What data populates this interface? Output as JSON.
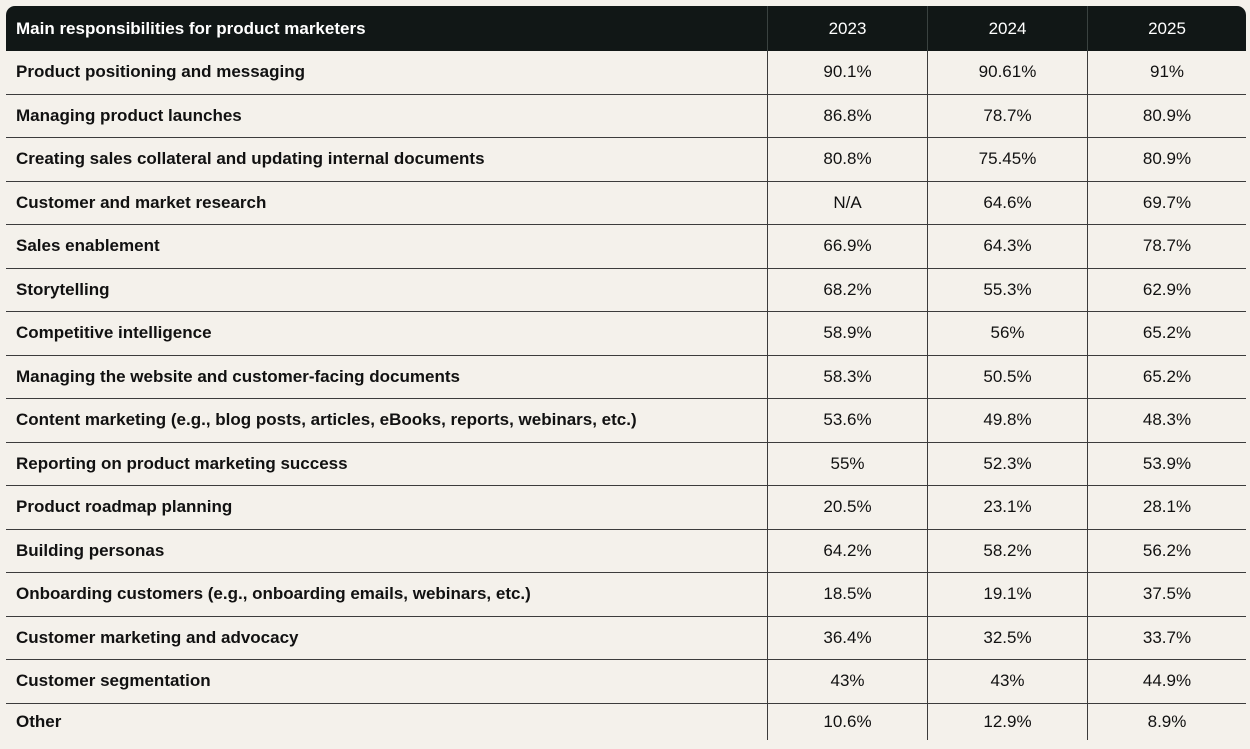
{
  "chart_data": {
    "type": "table",
    "title": "",
    "header": [
      "Main responsibilities for product marketers",
      "2023",
      "2024",
      "2025"
    ],
    "rows": [
      {
        "label": "Product positioning and messaging",
        "values": [
          "90.1%",
          "90.61%",
          "91%"
        ]
      },
      {
        "label": "Managing product launches",
        "values": [
          "86.8%",
          "78.7%",
          "80.9%"
        ]
      },
      {
        "label": "Creating sales collateral and updating internal documents",
        "values": [
          "80.8%",
          "75.45%",
          "80.9%"
        ]
      },
      {
        "label": "Customer and market research",
        "values": [
          "N/A",
          "64.6%",
          "69.7%"
        ]
      },
      {
        "label": "Sales enablement",
        "values": [
          "66.9%",
          "64.3%",
          "78.7%"
        ]
      },
      {
        "label": "Storytelling",
        "values": [
          "68.2%",
          "55.3%",
          "62.9%"
        ]
      },
      {
        "label": "Competitive intelligence",
        "values": [
          "58.9%",
          "56%",
          "65.2%"
        ]
      },
      {
        "label": "Managing the website and customer-facing documents",
        "values": [
          "58.3%",
          "50.5%",
          "65.2%"
        ]
      },
      {
        "label": "Content marketing (e.g., blog posts, articles, eBooks, reports, webinars, etc.)",
        "values": [
          "53.6%",
          "49.8%",
          "48.3%"
        ]
      },
      {
        "label": "Reporting on product marketing success",
        "values": [
          "55%",
          "52.3%",
          "53.9%"
        ]
      },
      {
        "label": "Product roadmap planning",
        "values": [
          "20.5%",
          "23.1%",
          "28.1%"
        ]
      },
      {
        "label": "Building personas",
        "values": [
          "64.2%",
          "58.2%",
          "56.2%"
        ]
      },
      {
        "label": "Onboarding customers (e.g., onboarding emails, webinars, etc.)",
        "values": [
          "18.5%",
          "19.1%",
          "37.5%"
        ]
      },
      {
        "label": "Customer marketing and advocacy",
        "values": [
          "36.4%",
          "32.5%",
          "33.7%"
        ]
      },
      {
        "label": "Customer segmentation",
        "values": [
          "43%",
          "43%",
          "44.9%"
        ]
      },
      {
        "label": "Other",
        "values": [
          "10.6%",
          "12.9%",
          "8.9%"
        ]
      }
    ]
  },
  "colors": {
    "header_background": "#111716",
    "header_text": "#ffffff",
    "body_background": "#f4f1eb",
    "rule": "#3c3c3c"
  }
}
